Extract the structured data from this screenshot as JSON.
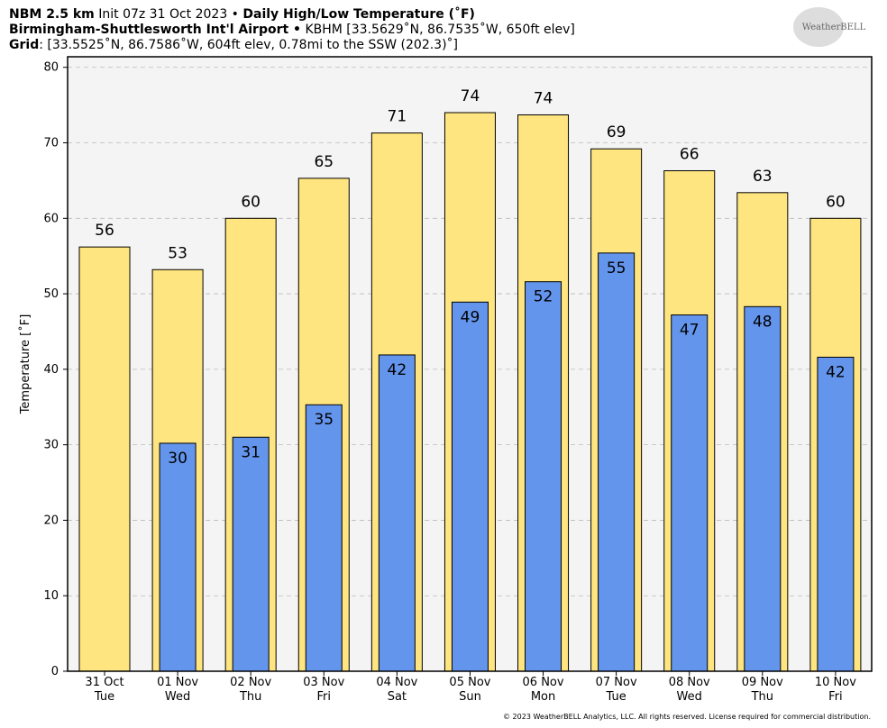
{
  "chart_data": {
    "type": "overlap_bar",
    "header": {
      "model": "NBM 2.5 km",
      "init": "Init 07z 31 Oct 2023 •",
      "title": "Daily High/Low Temperature (˚F)",
      "location": "Birmingham-Shuttlesworth Int'l Airport •",
      "station": "KBHM [33.5629˚N, 86.7535˚W, 650ft elev]",
      "grid_label": "Grid",
      "grid_info": ": [33.5525˚N, 86.7586˚W, 604ft elev, 0.78mi to the SSW (202.3)˚]"
    },
    "logo": "WeatherBELL",
    "copyright": "© 2023 WeatherBELL Analytics, LLC. All rights reserved. License required for commercial distribution.",
    "ylabel": "Temperature [˚F]",
    "categories": [
      [
        "31 Oct",
        "Tue"
      ],
      [
        "01 Nov",
        "Wed"
      ],
      [
        "02 Nov",
        "Thu"
      ],
      [
        "03 Nov",
        "Fri"
      ],
      [
        "04 Nov",
        "Sat"
      ],
      [
        "05 Nov",
        "Sun"
      ],
      [
        "06 Nov",
        "Mon"
      ],
      [
        "07 Nov",
        "Tue"
      ],
      [
        "08 Nov",
        "Wed"
      ],
      [
        "09 Nov",
        "Thu"
      ],
      [
        "10 Nov",
        "Fri"
      ]
    ],
    "series": [
      {
        "name": "High",
        "color": "#ffe57f",
        "values": [
          56.2,
          53.2,
          60,
          65.3,
          71.3,
          74,
          73.7,
          69.2,
          66.3,
          63.4,
          60
        ],
        "value_labels": [
          "56",
          "53",
          "60",
          "65",
          "71",
          "74",
          "74",
          "69",
          "66",
          "63",
          "60"
        ]
      },
      {
        "name": "Low",
        "color": "#6495ed",
        "values": [
          null,
          30.2,
          31,
          35.3,
          41.9,
          48.9,
          51.6,
          55.4,
          47.2,
          48.3,
          41.6
        ],
        "value_labels": [
          null,
          "30",
          "31",
          "35",
          "42",
          "49",
          "52",
          "55",
          "47",
          "48",
          "42"
        ]
      }
    ],
    "ylim": [
      0,
      81.4
    ],
    "yticks": [
      0,
      10,
      20,
      30,
      40,
      50,
      60,
      70,
      80
    ],
    "grid": true
  }
}
